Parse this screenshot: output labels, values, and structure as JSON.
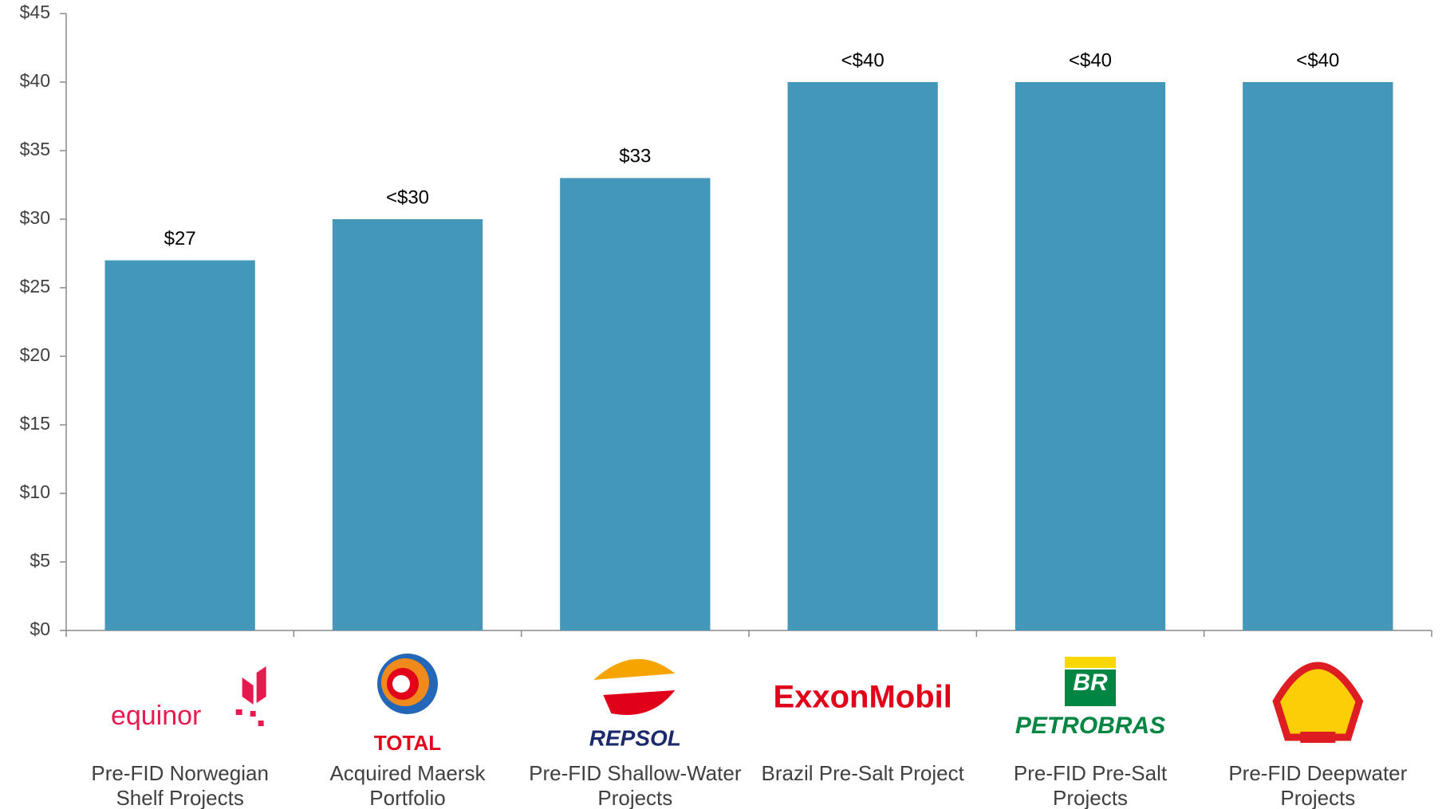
{
  "chart_data": {
    "type": "bar",
    "categories": [
      "Pre-FID Norwegian Shelf Projects",
      "Acquired Maersk Portfolio",
      "Pre-FID Shallow-Water Projects",
      "Brazil Pre-Salt Project",
      "Pre-FID Pre-Salt Projects",
      "Pre-FID Deepwater Projects"
    ],
    "logos": [
      [
        "equinor"
      ],
      [
        "TOTAL"
      ],
      [
        "REPSOL"
      ],
      [
        "ExxonMobil"
      ],
      [
        "BR",
        "PETROBRAS"
      ],
      []
    ],
    "values": [
      27,
      30,
      33,
      40,
      40,
      40
    ],
    "value_labels": [
      "$27",
      "<$30",
      "$33",
      "<$40",
      "<$40",
      "<$40"
    ],
    "color": "#4397b8",
    "ylim": [
      0,
      45
    ],
    "yticks": [
      {
        "value": 0,
        "label": "$0"
      },
      {
        "value": 5,
        "label": "$5"
      },
      {
        "value": 10,
        "label": "$10"
      },
      {
        "value": 15,
        "label": "$15"
      },
      {
        "value": 20,
        "label": "$20"
      },
      {
        "value": 25,
        "label": "$25"
      },
      {
        "value": 30,
        "label": "$30"
      },
      {
        "value": 35,
        "label": "$35"
      },
      {
        "value": 40,
        "label": "$40"
      },
      {
        "value": 45,
        "label": "$45"
      }
    ],
    "grid": false
  }
}
